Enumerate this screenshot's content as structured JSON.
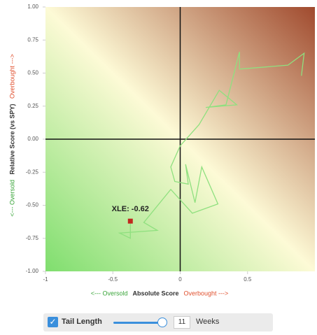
{
  "chart_data": {
    "type": "line",
    "x": [
      0.9,
      0.92,
      0.8,
      0.44,
      0.44,
      0.34,
      0.19,
      0.42,
      0.29,
      0.14,
      0.0,
      -0.07,
      -0.04,
      0.06,
      0.04,
      0.11,
      0.16,
      0.28,
      0.09,
      -0.07,
      -0.27,
      -0.17,
      -0.45,
      -0.37,
      -0.37
    ],
    "values": [
      0.48,
      0.65,
      0.56,
      0.53,
      0.66,
      0.26,
      0.24,
      0.26,
      0.37,
      0.11,
      -0.05,
      -0.21,
      -0.32,
      -0.34,
      -0.19,
      -0.48,
      -0.21,
      -0.49,
      -0.56,
      -0.38,
      -0.63,
      -0.69,
      -0.71,
      -0.75,
      -0.62
    ],
    "color": "#8fe07f",
    "head_color": "#c0281e",
    "annotation": "XLE: -0.62",
    "xlim": [
      -1,
      1
    ],
    "ylim": [
      -1,
      1
    ],
    "xticks": [
      -1,
      -0.5,
      0,
      0.5
    ],
    "yticks": [
      {
        "value": 1,
        "label": "1.00"
      },
      {
        "value": 0.75,
        "label": "0.75"
      },
      {
        "value": 0.5,
        "label": "0.50"
      },
      {
        "value": 0.25,
        "label": "0.25"
      },
      {
        "value": 0,
        "label": "0.00"
      },
      {
        "value": -0.25,
        "label": "-0.25"
      },
      {
        "value": -0.5,
        "label": "-0.50"
      },
      {
        "value": -0.75,
        "label": "-0.75"
      },
      {
        "value": -1,
        "label": "-1.00"
      }
    ],
    "x_label": "Absolute Score",
    "x_label_low": "<--- Oversold",
    "x_label_high": "Overbought --->",
    "y_label": "Relative Score (vs SPY)",
    "y_label_low": "<--- Oversold",
    "y_label_high": "Overbought --->"
  },
  "controls": {
    "checkbox_label": "Tail Length",
    "tail_length": 11,
    "unit": "Weeks"
  }
}
